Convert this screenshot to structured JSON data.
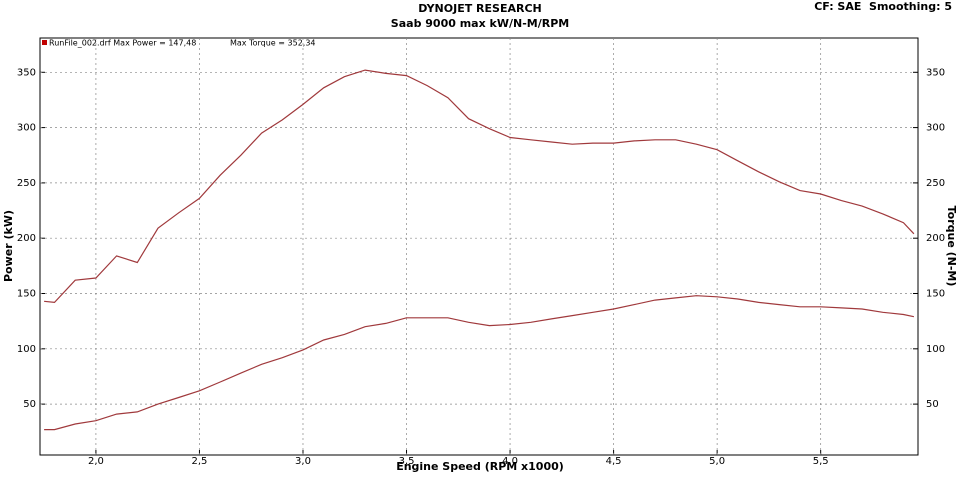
{
  "chart_data": {
    "type": "line",
    "title": "DYNOJET RESEARCH",
    "subtitle": "Saab 9000 max kW/N-M/RPM",
    "corner_text": "CF: SAE  Smoothing: 5",
    "annotations": [
      "RunFile_002.drf Max Power = 147,48",
      "Max Torque = 352,34"
    ],
    "x_label": "Engine Speed (RPM x1000)",
    "y_label": "Power (kW)",
    "y2_label": "Torque (N-M)",
    "x": [
      1.75,
      1.8,
      1.9,
      2.0,
      2.1,
      2.2,
      2.3,
      2.4,
      2.5,
      2.6,
      2.7,
      2.8,
      2.9,
      3.0,
      3.1,
      3.2,
      3.3,
      3.4,
      3.5,
      3.6,
      3.7,
      3.8,
      3.9,
      4.0,
      4.1,
      4.2,
      4.3,
      4.4,
      4.5,
      4.6,
      4.7,
      4.8,
      4.9,
      5.0,
      5.1,
      5.2,
      5.3,
      5.4,
      5.5,
      5.6,
      5.7,
      5.8,
      5.9,
      5.95
    ],
    "series": [
      {
        "color": "#a0393c",
        "values": [
          27,
          27,
          32,
          35,
          41,
          43,
          50,
          56,
          62,
          70,
          78,
          86,
          92,
          99,
          108,
          113,
          120,
          123,
          128,
          128,
          128,
          124,
          121,
          122,
          124,
          127,
          130,
          133,
          136,
          140,
          144,
          146,
          148,
          147,
          145,
          142,
          140,
          138,
          138,
          137,
          136,
          133,
          131,
          129
        ]
      },
      {
        "color": "#a0393c",
        "axis": "y2",
        "values": [
          143,
          142,
          162,
          164,
          184,
          178,
          209,
          223,
          236,
          257,
          275,
          295,
          307,
          321,
          336,
          346,
          352,
          349,
          347,
          338,
          327,
          308,
          299,
          291,
          289,
          287,
          285,
          286,
          286,
          288,
          289,
          289,
          285,
          280,
          270,
          260,
          251,
          243,
          240,
          234,
          229,
          222,
          214,
          204
        ]
      }
    ],
    "xlim": [
      1.73,
      5.97
    ],
    "xticks": [
      {
        "value": 2,
        "label": "2,0"
      },
      {
        "value": 2.5,
        "label": "2,5"
      },
      {
        "value": 3,
        "label": "3,0"
      },
      {
        "value": 3.5,
        "label": "3,5"
      },
      {
        "value": 4,
        "label": "4,0"
      },
      {
        "value": 4.5,
        "label": "4,5"
      },
      {
        "value": 5,
        "label": "5,0"
      },
      {
        "value": 5.5,
        "label": "5,5"
      }
    ],
    "ylim": [
      4,
      381
    ],
    "yticks": [
      50,
      100,
      150,
      200,
      250,
      300,
      350
    ],
    "y2lim": [
      4,
      381
    ],
    "y2ticks": [
      50,
      100,
      150,
      200,
      250,
      300,
      350
    ],
    "grid": true
  }
}
